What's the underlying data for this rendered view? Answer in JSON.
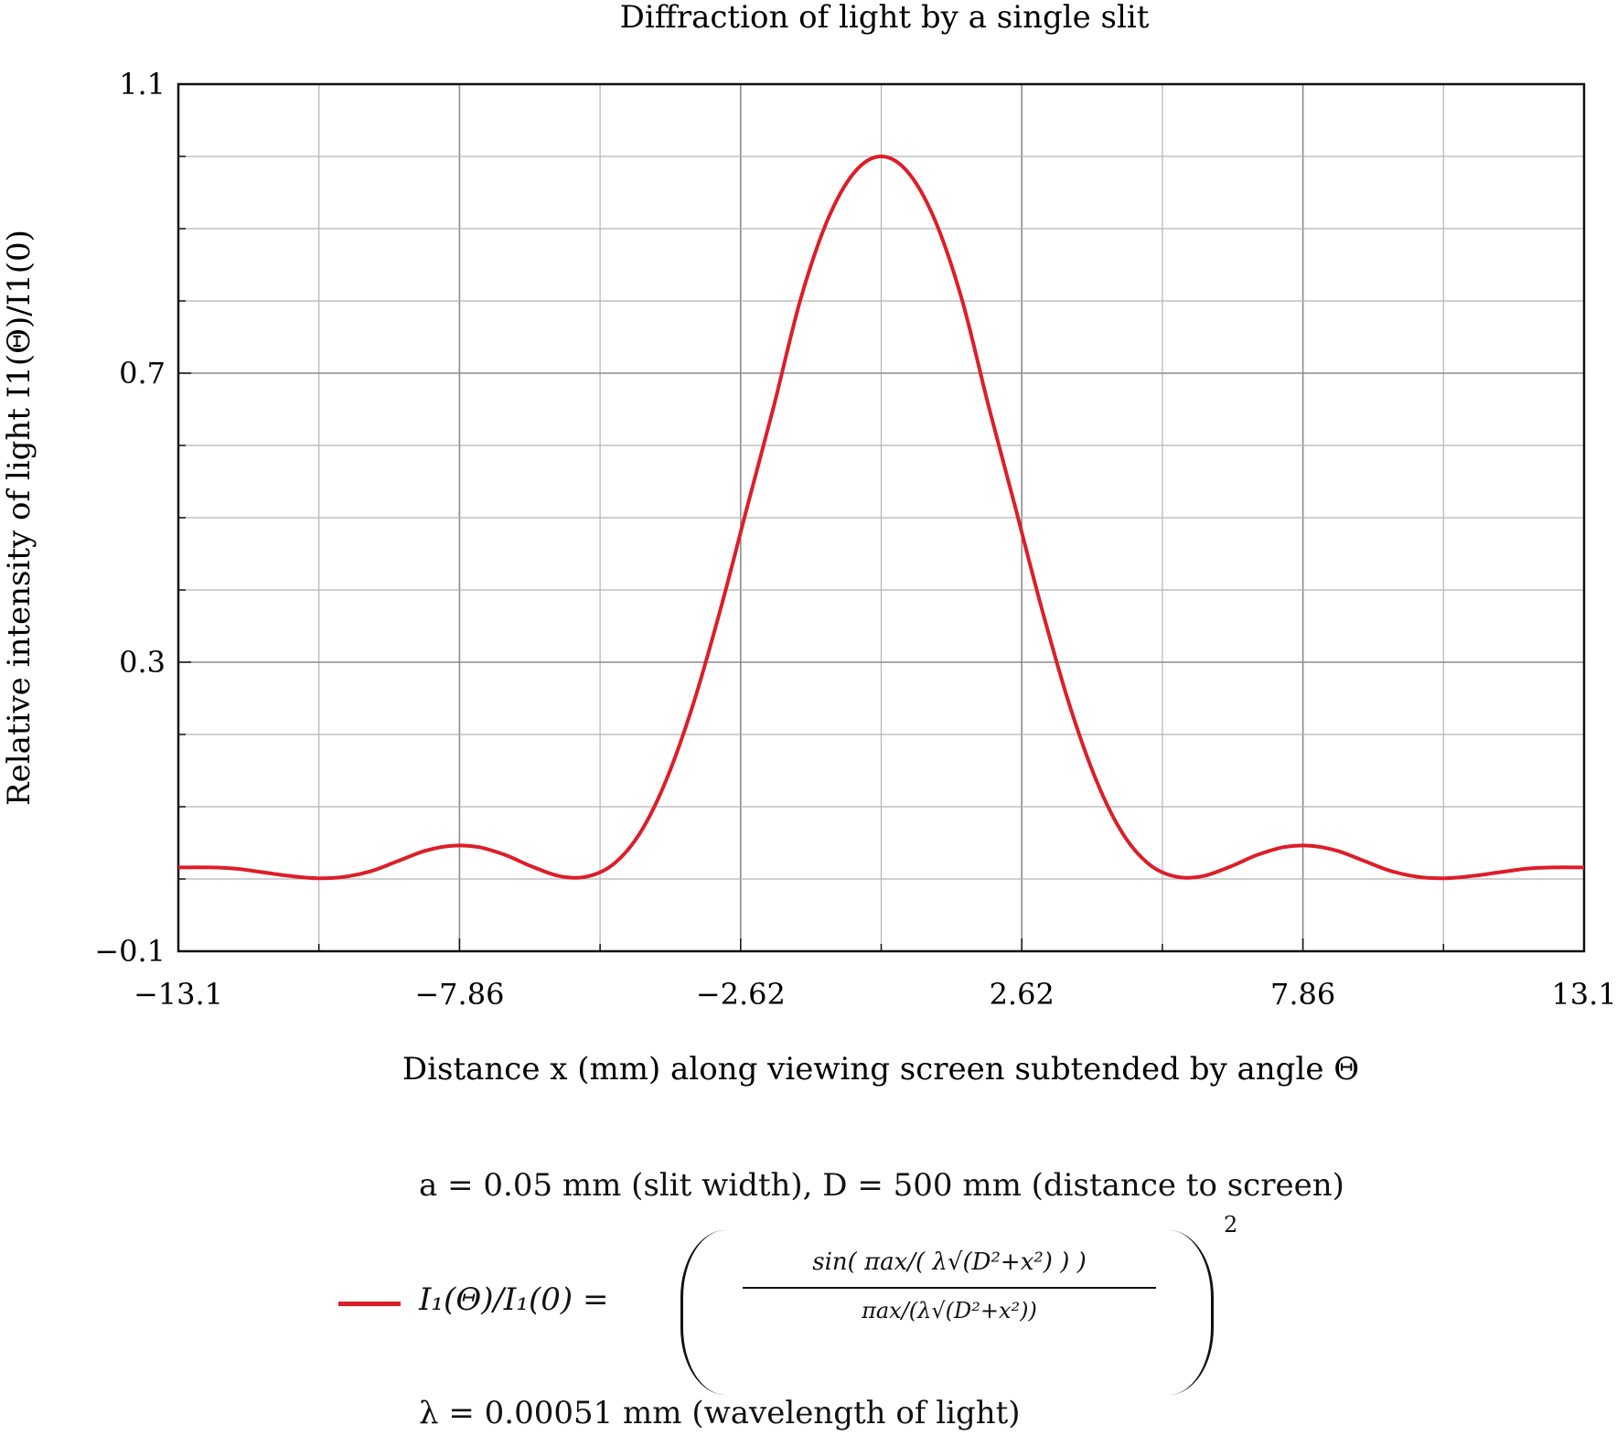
{
  "chart_data": {
    "type": "line",
    "title": "Diffraction of light by a single slit",
    "xlabel": "Distance x (mm) along viewing screen subtended by angle Θ",
    "ylabel": "Relative intensity of light I1(Θ)/I1(0)",
    "xlim": [
      -13.1,
      13.1
    ],
    "ylim": [
      -0.1,
      1.1
    ],
    "x_ticks": [
      -13.1,
      -7.86,
      -2.62,
      2.62,
      7.86,
      13.1
    ],
    "x_tick_labels": [
      "−13.1",
      "−7.86",
      "−2.62",
      "2.62",
      "7.86",
      "13.1"
    ],
    "y_ticks": [
      1.1,
      0.7,
      0.3,
      -0.1
    ],
    "y_tick_labels": [
      "1.1",
      "0.7",
      "0.3",
      "−0.1"
    ],
    "grid": true,
    "series": [
      {
        "name": "I1(Θ)/I1(0) = ( sin(πax/(λ√(D²+x²))) / (πax/(λ√(D²+x²))) )²",
        "color": "#dc1e28",
        "x": [
          -13.1,
          -12.5,
          -12.0,
          -11.5,
          -11.0,
          -10.5,
          -10.0,
          -9.5,
          -9.0,
          -8.5,
          -8.0,
          -7.5,
          -7.0,
          -6.5,
          -6.0,
          -5.5,
          -5.0,
          -4.5,
          -4.0,
          -3.5,
          -3.0,
          -2.5,
          -2.0,
          -1.5,
          -1.0,
          -0.5,
          0.0,
          0.5,
          1.0,
          1.5,
          2.0,
          2.5,
          3.0,
          3.5,
          4.0,
          4.5,
          5.0,
          5.5,
          6.0,
          6.5,
          7.0,
          7.5,
          8.0,
          8.5,
          9.0,
          9.5,
          10.0,
          10.5,
          11.0,
          11.5,
          12.0,
          12.5,
          13.1
        ],
        "y": [
          0.016,
          0.016,
          0.014,
          0.009,
          0.004,
          0.001,
          0.003,
          0.011,
          0.025,
          0.039,
          0.046,
          0.044,
          0.033,
          0.017,
          0.004,
          0.003,
          0.02,
          0.063,
          0.138,
          0.243,
          0.372,
          0.514,
          0.655,
          0.803,
          0.912,
          0.978,
          1.0,
          0.978,
          0.912,
          0.803,
          0.655,
          0.514,
          0.372,
          0.243,
          0.138,
          0.063,
          0.02,
          0.003,
          0.004,
          0.017,
          0.033,
          0.044,
          0.046,
          0.039,
          0.025,
          0.011,
          0.003,
          0.001,
          0.004,
          0.009,
          0.014,
          0.016,
          0.016
        ]
      }
    ],
    "annotations": {
      "params_top": "a = 0.05 mm (slit width), D = 500 mm (distance to screen)",
      "params_bottom": "λ = 0.00051 mm (wavelength of light)"
    }
  },
  "legend": {
    "lhs": "I₁(Θ)/I₁(0) =",
    "numerator": "sin( πax/( λ√(D²+x²) ) )",
    "denominator": "πax/(λ√(D²+x²))",
    "power": "2"
  }
}
